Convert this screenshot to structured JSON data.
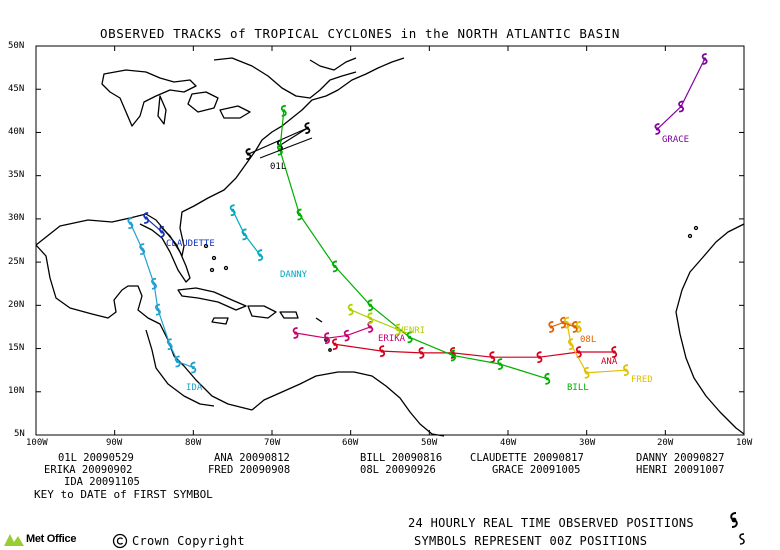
{
  "title": "OBSERVED TRACKS of TROPICAL CYCLONES in the NORTH ATLANTIC BASIN",
  "axes": {
    "lon_labels": [
      "100W",
      "90W",
      "80W",
      "70W",
      "60W",
      "50W",
      "40W",
      "30W",
      "20W",
      "10W"
    ],
    "lat_labels": [
      "50N",
      "45N",
      "40N",
      "35N",
      "30N",
      "25N",
      "20N",
      "15N",
      "10N",
      "5N"
    ]
  },
  "storms": [
    {
      "name": "01L",
      "color": "#000000",
      "track": [
        [
          -69.0,
          38.5
        ],
        [
          -65.5,
          40.5
        ],
        [
          -73.0,
          37.5
        ]
      ]
    },
    {
      "name": "ANA",
      "color": "#d4001e",
      "track": [
        [
          -26.5,
          14.6
        ],
        [
          -31.0,
          14.6
        ],
        [
          -36.0,
          14.0
        ],
        [
          -42.0,
          14.0
        ],
        [
          -47.0,
          14.5
        ],
        [
          -51.0,
          14.5
        ],
        [
          -56.0,
          14.7
        ],
        [
          -62.0,
          15.5
        ]
      ]
    },
    {
      "name": "BILL",
      "color": "#00b000",
      "track": [
        [
          -35.0,
          11.5
        ],
        [
          -41.0,
          13.2
        ],
        [
          -47.0,
          14.2
        ],
        [
          -52.5,
          16.3
        ],
        [
          -57.5,
          20.0
        ],
        [
          -62.0,
          24.5
        ],
        [
          -66.5,
          30.5
        ],
        [
          -69.0,
          38.0
        ],
        [
          -68.5,
          42.5
        ]
      ]
    },
    {
      "name": "CLAUDETTE",
      "color": "#1030c0",
      "track": [
        [
          -86.0,
          30.1
        ],
        [
          -84.0,
          28.5
        ]
      ]
    },
    {
      "name": "DANNY",
      "color": "#00a8c0",
      "track": [
        [
          -71.5,
          25.8
        ],
        [
          -73.5,
          28.2
        ],
        [
          -75.0,
          31.0
        ]
      ]
    },
    {
      "name": "ERIKA",
      "color": "#c80070",
      "track": [
        [
          -57.5,
          17.5
        ],
        [
          -60.5,
          16.5
        ],
        [
          -63.0,
          16.2
        ],
        [
          -67.0,
          16.8
        ]
      ]
    },
    {
      "name": "FRED",
      "color": "#e0c000",
      "track": [
        [
          -25.0,
          12.5
        ],
        [
          -30.0,
          12.2
        ],
        [
          -32.0,
          15.5
        ],
        [
          -32.5,
          18.0
        ],
        [
          -31.0,
          17.5
        ]
      ]
    },
    {
      "name": "GRACE",
      "color": "#8000a0",
      "track": [
        [
          -21.0,
          40.4
        ],
        [
          -18.0,
          43.0
        ],
        [
          -15.0,
          48.5
        ]
      ]
    },
    {
      "name": "HENRI",
      "color": "#b0d000",
      "track": [
        [
          -54.0,
          17.2
        ],
        [
          -57.5,
          18.5
        ],
        [
          -60.0,
          19.5
        ]
      ]
    },
    {
      "name": "IDA",
      "color": "#20a0d0",
      "track": [
        [
          -80.0,
          12.8
        ],
        [
          -82.0,
          13.5
        ],
        [
          -83.0,
          15.5
        ],
        [
          -84.5,
          19.5
        ],
        [
          -85.0,
          22.5
        ],
        [
          -86.5,
          26.5
        ],
        [
          -88.0,
          29.5
        ]
      ]
    },
    {
      "name": "08L",
      "color": "#e06000",
      "track": [
        [
          -31.5,
          17.5
        ],
        [
          -33.0,
          18.0
        ],
        [
          -34.5,
          17.5
        ]
      ]
    }
  ],
  "labels": {
    "o1l": "01L",
    "claudette": "CLAUDETTE",
    "danny": "DANNY",
    "erika": "ERIKA",
    "henri": "HENRI",
    "ida": "IDA",
    "ana": "ANA",
    "fred": "FRED",
    "bill": "BILL",
    "grace": "GRACE",
    "o8l": "08L"
  },
  "key_rows": [
    [
      "01L 20090529",
      "ANA 20090812",
      "BILL 20090816",
      "CLAUDETTE 20090817",
      "DANNY 20090827"
    ],
    [
      "ERIKA 20090902",
      "FRED 20090908",
      "08L 20090926",
      "GRACE 20091005",
      "HENRI 20091007"
    ],
    [
      "IDA 20091105"
    ]
  ],
  "key_title": "KEY to DATE of FIRST SYMBOL",
  "footer": {
    "line1": "24 HOURLY REAL TIME OBSERVED POSITIONS",
    "line2": "SYMBOLS REPRESENT 00Z POSITIONS",
    "copyright": "Crown Copyright",
    "logo": "Met Office"
  }
}
